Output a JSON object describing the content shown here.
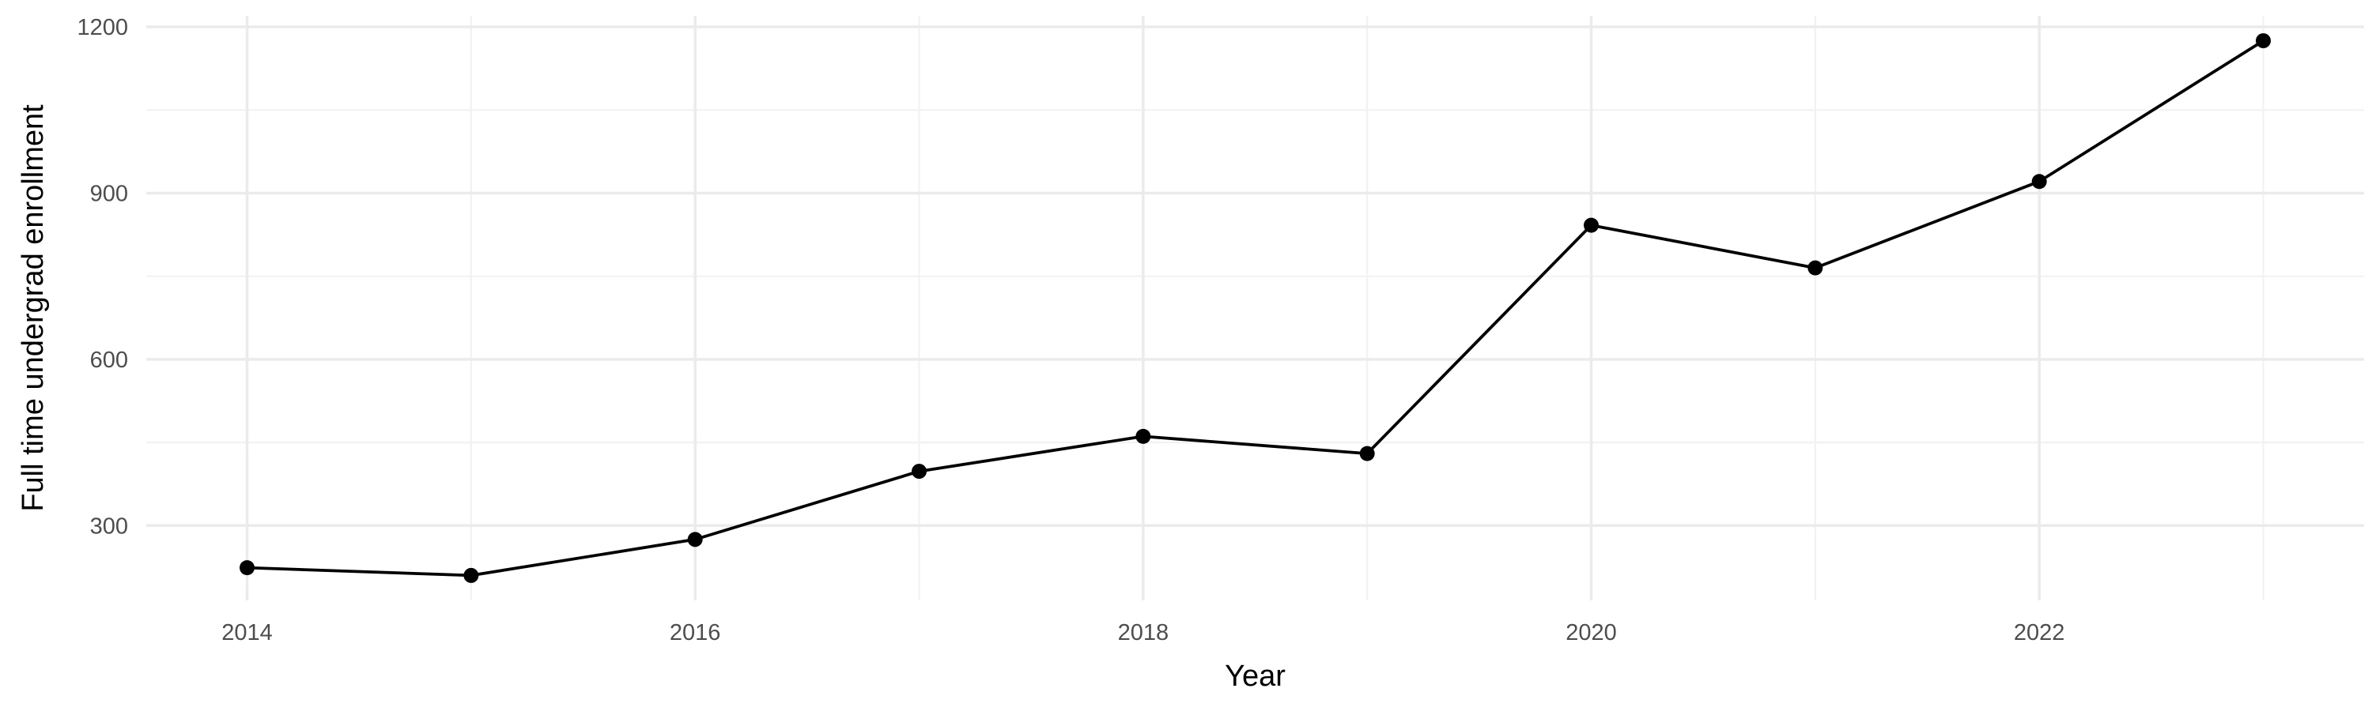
{
  "chart_data": {
    "type": "line",
    "title": "",
    "xlabel": "Year",
    "ylabel": "Full time undergrad enrollment",
    "x": [
      2014,
      2015,
      2016,
      2017,
      2018,
      2019,
      2020,
      2021,
      2022,
      2023
    ],
    "series": [
      {
        "values": [
          224,
          210,
          275,
          398,
          461,
          430,
          842,
          765,
          921,
          1175
        ]
      }
    ],
    "xlim": [
      2013.55,
      2023.45
    ],
    "ylim": [
      165,
      1220
    ],
    "x_ticks": [
      2014,
      2016,
      2018,
      2020,
      2022
    ],
    "x_tick_labels": [
      "2014",
      "2016",
      "2018",
      "2020",
      "2022"
    ],
    "y_ticks": [
      300,
      600,
      900,
      1200
    ],
    "y_tick_labels": [
      "300",
      "600",
      "900",
      "1200"
    ],
    "grid": true,
    "legend": "none",
    "colors": {
      "line": "#000000",
      "point": "#000000",
      "grid": "#ebebeb",
      "background": "#ffffff"
    }
  }
}
